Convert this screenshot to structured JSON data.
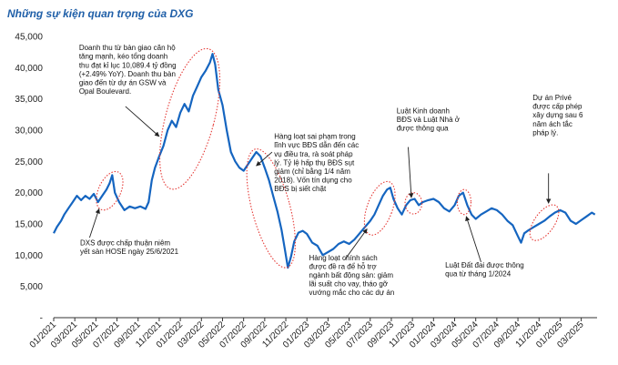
{
  "title": "Những sự kiện quan trọng của DXG",
  "colors": {
    "line": "#1565c0",
    "highlight": "#e53935",
    "axis": "#333333",
    "title": "#1f5fa8"
  },
  "chart_data": {
    "type": "line",
    "title": "Những sự kiện quan trọng của DXG",
    "xlabel": "",
    "ylabel": "",
    "ylim": [
      0,
      45000
    ],
    "xlim": [
      0,
      51.5
    ],
    "y_ticks": [
      "-",
      "5,000",
      "10,000",
      "15,000",
      "20,000",
      "25,000",
      "30,000",
      "35,000",
      "40,000",
      "45,000"
    ],
    "x_ticks": [
      {
        "label": "01/2021",
        "m": 0
      },
      {
        "label": "03/2021",
        "m": 2
      },
      {
        "label": "05/2021",
        "m": 4
      },
      {
        "label": "07/2021",
        "m": 6
      },
      {
        "label": "09/2021",
        "m": 8
      },
      {
        "label": "11/2021",
        "m": 10
      },
      {
        "label": "01/2022",
        "m": 12
      },
      {
        "label": "03/2022",
        "m": 14
      },
      {
        "label": "05/2022",
        "m": 16
      },
      {
        "label": "07/2022",
        "m": 18
      },
      {
        "label": "09/2022",
        "m": 20
      },
      {
        "label": "11/2022",
        "m": 22
      },
      {
        "label": "01/2023",
        "m": 24
      },
      {
        "label": "03/2023",
        "m": 26
      },
      {
        "label": "05/2023",
        "m": 28
      },
      {
        "label": "07/2023",
        "m": 30
      },
      {
        "label": "09/2023",
        "m": 32
      },
      {
        "label": "11/2023",
        "m": 34
      },
      {
        "label": "01/2024",
        "m": 36
      },
      {
        "label": "03/2024",
        "m": 38
      },
      {
        "label": "05/2024",
        "m": 40
      },
      {
        "label": "07/2024",
        "m": 42
      },
      {
        "label": "09/2024",
        "m": 44
      },
      {
        "label": "11/2024",
        "m": 46
      },
      {
        "label": "01/2025",
        "m": 48
      },
      {
        "label": "03/2025",
        "m": 50
      }
    ],
    "series": [
      {
        "name": "DXG",
        "points": [
          [
            0,
            13500
          ],
          [
            0.3,
            14500
          ],
          [
            0.7,
            15500
          ],
          [
            1,
            16500
          ],
          [
            1.4,
            17500
          ],
          [
            1.8,
            18500
          ],
          [
            2.2,
            19500
          ],
          [
            2.6,
            18800
          ],
          [
            3,
            19500
          ],
          [
            3.4,
            19000
          ],
          [
            3.8,
            19800
          ],
          [
            4.2,
            18500
          ],
          [
            4.6,
            19500
          ],
          [
            5,
            20500
          ],
          [
            5.3,
            21500
          ],
          [
            5.55,
            22800
          ],
          [
            5.8,
            20000
          ],
          [
            6.2,
            18500
          ],
          [
            6.7,
            17200
          ],
          [
            7.2,
            17800
          ],
          [
            7.7,
            17500
          ],
          [
            8.2,
            17800
          ],
          [
            8.7,
            17400
          ],
          [
            9,
            18500
          ],
          [
            9.3,
            22000
          ],
          [
            9.6,
            24000
          ],
          [
            10,
            25800
          ],
          [
            10.4,
            27500
          ],
          [
            10.8,
            30000
          ],
          [
            11.2,
            31500
          ],
          [
            11.6,
            30500
          ],
          [
            12,
            32800
          ],
          [
            12.4,
            34200
          ],
          [
            12.8,
            33000
          ],
          [
            13.2,
            35500
          ],
          [
            13.6,
            37000
          ],
          [
            14,
            38500
          ],
          [
            14.4,
            39500
          ],
          [
            14.8,
            40800
          ],
          [
            15.05,
            42200
          ],
          [
            15.3,
            40500
          ],
          [
            15.6,
            36500
          ],
          [
            16,
            34000
          ],
          [
            16.4,
            30000
          ],
          [
            16.8,
            26500
          ],
          [
            17.2,
            25000
          ],
          [
            17.6,
            24000
          ],
          [
            18,
            23500
          ],
          [
            18.4,
            24500
          ],
          [
            18.8,
            25500
          ],
          [
            19.2,
            26500
          ],
          [
            19.6,
            25800
          ],
          [
            20,
            24000
          ],
          [
            20.4,
            22000
          ],
          [
            20.8,
            19500
          ],
          [
            21.2,
            17000
          ],
          [
            21.6,
            14000
          ],
          [
            21.9,
            11000
          ],
          [
            22.2,
            8000
          ],
          [
            22.5,
            9800
          ],
          [
            22.8,
            12200
          ],
          [
            23.2,
            13600
          ],
          [
            23.6,
            13900
          ],
          [
            24,
            13400
          ],
          [
            24.5,
            12000
          ],
          [
            25,
            11500
          ],
          [
            25.5,
            10000
          ],
          [
            26,
            10500
          ],
          [
            26.5,
            11000
          ],
          [
            27,
            11800
          ],
          [
            27.5,
            12200
          ],
          [
            28,
            11800
          ],
          [
            28.5,
            12500
          ],
          [
            29,
            13500
          ],
          [
            29.5,
            14500
          ],
          [
            30,
            15500
          ],
          [
            30.4,
            16500
          ],
          [
            30.8,
            18000
          ],
          [
            31.2,
            19500
          ],
          [
            31.6,
            20500
          ],
          [
            31.9,
            20800
          ],
          [
            32.2,
            19000
          ],
          [
            32.6,
            17500
          ],
          [
            33,
            16500
          ],
          [
            33.4,
            18000
          ],
          [
            33.8,
            18800
          ],
          [
            34.2,
            19000
          ],
          [
            34.6,
            18000
          ],
          [
            35,
            18500
          ],
          [
            35.5,
            18800
          ],
          [
            36,
            19000
          ],
          [
            36.5,
            18500
          ],
          [
            37,
            17500
          ],
          [
            37.5,
            17000
          ],
          [
            38,
            18000
          ],
          [
            38.4,
            19500
          ],
          [
            38.8,
            20000
          ],
          [
            39.2,
            18000
          ],
          [
            39.6,
            16500
          ],
          [
            40,
            15800
          ],
          [
            40.5,
            16500
          ],
          [
            41,
            17000
          ],
          [
            41.5,
            17500
          ],
          [
            42,
            17200
          ],
          [
            42.5,
            16500
          ],
          [
            43,
            15500
          ],
          [
            43.5,
            14800
          ],
          [
            44,
            13000
          ],
          [
            44.3,
            12000
          ],
          [
            44.6,
            13500
          ],
          [
            45,
            14000
          ],
          [
            45.5,
            14500
          ],
          [
            46,
            15000
          ],
          [
            46.5,
            15500
          ],
          [
            47,
            16200
          ],
          [
            47.5,
            16800
          ],
          [
            48,
            17200
          ],
          [
            48.5,
            16800
          ],
          [
            49,
            15500
          ],
          [
            49.5,
            15000
          ],
          [
            50,
            15600
          ],
          [
            50.5,
            16200
          ],
          [
            51,
            16800
          ],
          [
            51.3,
            16500
          ]
        ]
      }
    ],
    "highlights": [
      {
        "name": "ellipse-mid-2021",
        "m": 5.3,
        "v": 20300,
        "rm": 1.05,
        "rv": 3300,
        "rot": 25
      },
      {
        "name": "ellipse-peak-2022",
        "m": 12.9,
        "v": 31800,
        "rm": 2.3,
        "rv": 11600,
        "rot": 15
      },
      {
        "name": "ellipse-crash-2022",
        "m": 20.6,
        "v": 17500,
        "rm": 1.8,
        "rv": 9800,
        "rot": -15
      },
      {
        "name": "ellipse-2023",
        "m": 30.9,
        "v": 17500,
        "rm": 1.2,
        "rv": 4500,
        "rot": 20
      },
      {
        "name": "ellipse-2023b",
        "m": 34.1,
        "v": 18300,
        "rm": 0.8,
        "rv": 1700,
        "rot": 0
      },
      {
        "name": "ellipse-2024",
        "m": 38.9,
        "v": 18500,
        "rm": 0.65,
        "rv": 2000,
        "rot": 0
      },
      {
        "name": "ellipse-late-2024",
        "m": 46.5,
        "v": 15200,
        "rm": 0.95,
        "rv": 3300,
        "rot": 35
      }
    ],
    "annotations": [
      {
        "name": "ann-q4-2021-revenue",
        "lines": [
          "Doanh thu từ bàn giao căn hộ",
          "tăng mạnh, kéo tổng doanh",
          "thu đạt kỉ lục 10,089.4 tỷ đồng",
          "(+2.49% YoY). Doanh thu bàn",
          "giao đến từ dự án GSW và",
          "Opal Boulevard."
        ],
        "tm": 2.4,
        "tv": 42800,
        "pm": 10.0,
        "pv": 29000,
        "lm": 6.8,
        "lv": 33800
      },
      {
        "name": "ann-hose-listing",
        "lines": [
          "DXS được chấp thuận niêm",
          "yết sàn HOSE ngày 25/6/2021"
        ],
        "tm": 2.5,
        "tv": 11600,
        "pm": 4.3,
        "pv": 17400,
        "lm": 3.4,
        "lv": 12800
      },
      {
        "name": "ann-violations-2022",
        "lines": [
          "Hàng loạt sai phạm trong",
          "lĩnh vực BĐS dẫn đến các",
          "vụ điều tra, rà soát pháp",
          "lý. Tỷ lệ hấp thụ BĐS sụt",
          "giảm (chỉ bằng 1/4 năm",
          "2018). Vốn tín dụng cho",
          "BĐS bị siết chặt"
        ],
        "tm": 20.9,
        "tv": 28600,
        "pm": 19.2,
        "pv": 24300,
        "lm": 20.7,
        "lv": 26500
      },
      {
        "name": "ann-policy-2023",
        "lines": [
          "Hàng loạt chính sách",
          "được đề ra để hỗ trợ",
          "ngành bất động sản: giảm",
          "lãi suất cho vay, tháo gỡ",
          "vướng mắc cho các dự án"
        ],
        "tm": 24.2,
        "tv": 9200,
        "pm": 29.7,
        "pv": 14200,
        "lm": 27.6,
        "lv": 9300
      },
      {
        "name": "ann-business-law",
        "lines": [
          "Luật Kinh doanh",
          "BĐS và Luật Nhà ở",
          "được thông qua"
        ],
        "tm": 32.5,
        "tv": 32700,
        "pm": 33.9,
        "pv": 19200,
        "lm": 33.6,
        "lv": 27300
      },
      {
        "name": "ann-land-law",
        "lines": [
          "Luật Đất đai được thông",
          "qua từ tháng 1/2024"
        ],
        "tm": 37.1,
        "tv": 8000,
        "pm": 39.1,
        "pv": 16200,
        "lm": 40.5,
        "lv": 8900
      },
      {
        "name": "ann-prive-permit",
        "lines": [
          "Dự án Privé",
          "được cấp phép",
          "xây dựng sau 6",
          "năm ách tắc",
          "pháp lý."
        ],
        "tm": 45.4,
        "tv": 34800,
        "pm": 46.9,
        "pv": 18300,
        "lm": 46.9,
        "lv": 23100
      }
    ]
  }
}
